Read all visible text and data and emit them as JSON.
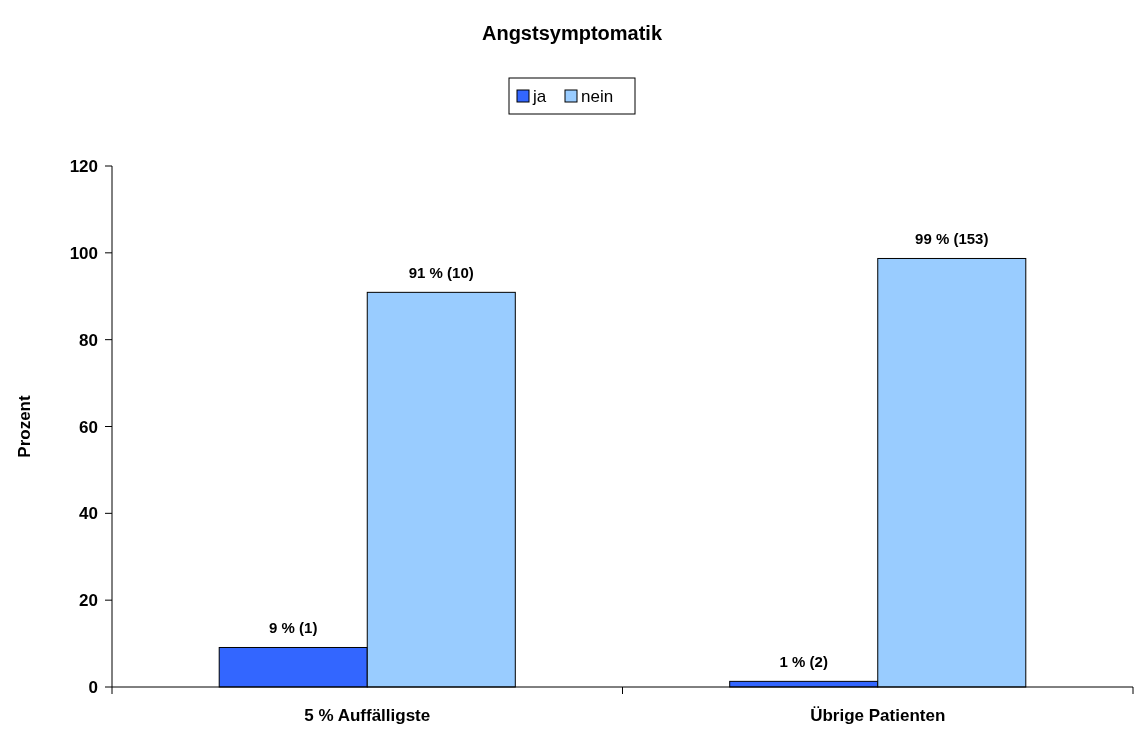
{
  "chart_data": {
    "type": "bar",
    "title": "Angstsymptomatik",
    "ylabel": "Prozent",
    "categories": [
      "5 % Auffälligste",
      "Übrige Patienten"
    ],
    "series": [
      {
        "name": "ja",
        "color": "#3366ff",
        "values": [
          9.1,
          1.3
        ],
        "value_labels": [
          "9 % (1)",
          "1 % (2)"
        ]
      },
      {
        "name": "nein",
        "color": "#99ccff",
        "values": [
          90.9,
          98.7
        ],
        "value_labels": [
          "91 % (10)",
          "99 % (153)"
        ]
      }
    ],
    "ylim": [
      0,
      120
    ],
    "yticks": [
      0,
      20,
      40,
      60,
      80,
      100,
      120
    ],
    "grid": false,
    "legend": "top"
  }
}
